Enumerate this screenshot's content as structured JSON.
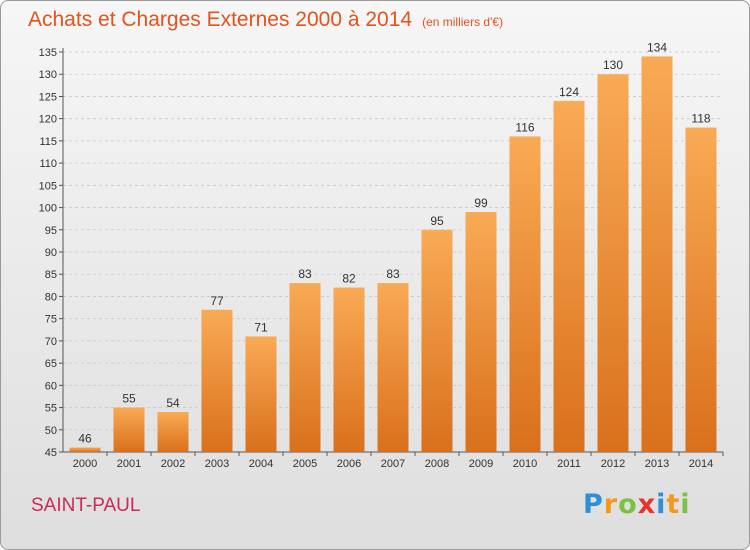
{
  "title": "Achats et Charges Externes 2000 à 2014",
  "unit": "(en milliers d'€)",
  "location": "SAINT-PAUL",
  "brand": {
    "letters": [
      "P",
      "r",
      "o",
      "x",
      "i",
      "t",
      "i"
    ],
    "colors": [
      "#2e8fd4",
      "#f39a1e",
      "#7cc242",
      "#e8332a",
      "#2e8fd4",
      "#f39a1e",
      "#7cc242"
    ]
  },
  "colors": {
    "title": "#e2531d",
    "location": "#cc2a5a",
    "bar_top": "#f9aa55",
    "bar_bottom": "#d9701c"
  },
  "chart_data": {
    "type": "bar",
    "title": "Achats et Charges Externes 2000 à 2014",
    "subtitle": "(en milliers d'€)",
    "xlabel": "",
    "ylabel": "",
    "categories": [
      "2000",
      "2001",
      "2002",
      "2003",
      "2004",
      "2005",
      "2006",
      "2007",
      "2008",
      "2009",
      "2010",
      "2011",
      "2012",
      "2013",
      "2014"
    ],
    "values": [
      46,
      55,
      54,
      77,
      71,
      83,
      82,
      83,
      95,
      99,
      116,
      124,
      130,
      134,
      118
    ],
    "ylim": [
      45,
      135
    ],
    "yticks": [
      45,
      50,
      55,
      60,
      65,
      70,
      75,
      80,
      85,
      90,
      95,
      100,
      105,
      110,
      115,
      120,
      125,
      130,
      135
    ],
    "grid": true,
    "legend": "none"
  }
}
